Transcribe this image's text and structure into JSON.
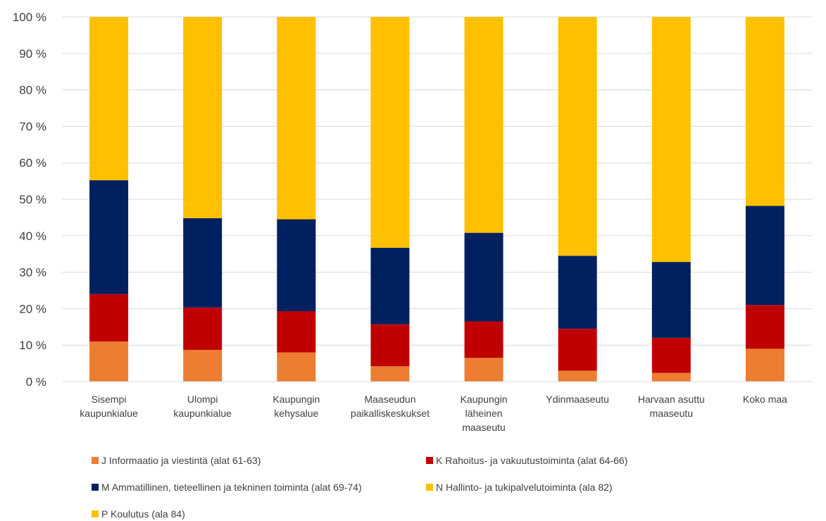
{
  "chart_data": {
    "type": "bar",
    "stacked": true,
    "percent": true,
    "categories": [
      [
        "Sisempi",
        "kaupunkialue"
      ],
      [
        "Ulompi",
        "kaupunkialue"
      ],
      [
        "Kaupungin",
        "kehysalue"
      ],
      [
        "Maaseudun",
        "paikalliskeskukset"
      ],
      [
        "Kaupungin",
        "läheinen",
        "maaseutu"
      ],
      [
        "Ydinmaaseutu"
      ],
      [
        "Harvaan asuttu",
        "maaseutu"
      ],
      [
        "Koko maa"
      ]
    ],
    "series": [
      {
        "name": "J Informaatio ja viestintä (alat 61-63)",
        "color": "#ED7D31",
        "values": [
          11,
          8.7,
          8,
          4.2,
          6.5,
          3,
          2.4,
          9
        ]
      },
      {
        "name": "K Rahoitus- ja vakuutustoiminta (alat 64-66)",
        "color": "#C00000",
        "values": [
          13,
          11.6,
          11.3,
          11.5,
          10,
          11.5,
          9.6,
          12
        ]
      },
      {
        "name": "M Ammatillinen, tieteellinen ja tekninen toiminta (alat 69-74)",
        "color": "#002060",
        "values": [
          31.2,
          24.5,
          25.2,
          21,
          24.3,
          20,
          20.8,
          27.2
        ]
      },
      {
        "name": "N Hallinto- ja tukipalvelutoiminta (ala 82)",
        "color": "#FFC000",
        "values": [
          4,
          4,
          3.8,
          3.8,
          3.6,
          2,
          3.2,
          3.8
        ]
      },
      {
        "name": "P Koulutus (ala 84)",
        "color": "#FFC000",
        "values": [
          40.8,
          51.2,
          51.7,
          59.5,
          55.6,
          63.5,
          64,
          48
        ]
      }
    ],
    "ylim": [
      0,
      100
    ],
    "yticks": [
      "0 %",
      "10 %",
      "20 %",
      "30 %",
      "40 %",
      "50 %",
      "60 %",
      "70 %",
      "80 %",
      "90 %",
      "100 %"
    ],
    "grid": true,
    "legend_position": "bottom"
  }
}
